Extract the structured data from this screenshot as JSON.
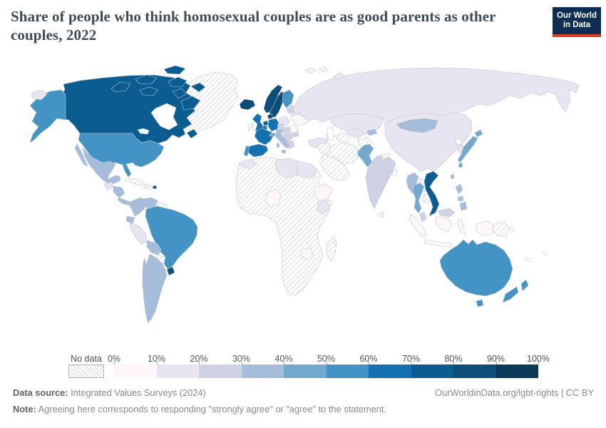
{
  "header": {
    "title": "Share of people who think homosexual couples are as good parents as other couples, 2022",
    "logo": {
      "line1": "Our World",
      "line2": "in Data",
      "bg_color": "#0d2d52",
      "accent_color": "#dc3d26"
    }
  },
  "footer": {
    "datasource_label": "Data source:",
    "datasource_value": "Integrated Values Surveys (2024)",
    "credit": "OurWorldinData.org/lgbt-rights | CC BY",
    "note_label": "Note:",
    "note_value": "Agreeing here corresponds to responding \"strongly agree\" or \"agree\" to the statement."
  },
  "chart_data": {
    "type": "choropleth",
    "title": "Share of people who think homosexual couples are as good parents as other couples",
    "year": "2022",
    "unit": "%",
    "legend": {
      "no_data_label": "No data",
      "tick_labels": [
        "0%",
        "10%",
        "20%",
        "30%",
        "40%",
        "50%",
        "60%",
        "70%",
        "80%",
        "90%",
        "100%"
      ],
      "band_colors": [
        "#fff6fa",
        "#e9e4f1",
        "#cfd1e5",
        "#a5bcdb",
        "#74a9cf",
        "#4394c4",
        "#1471b0",
        "#0b5d91",
        "#0d4d78",
        "#0b3a5a"
      ]
    },
    "countries": [
      {
        "id": "canada",
        "name": "Canada",
        "band": "70-80%"
      },
      {
        "id": "united-states",
        "name": "United States",
        "band": "50-60%"
      },
      {
        "id": "greenland",
        "name": "Greenland",
        "band": "no-data"
      },
      {
        "id": "iceland",
        "name": "Iceland",
        "band": "80-90%"
      },
      {
        "id": "mexico",
        "name": "Mexico",
        "band": "30-40%"
      },
      {
        "id": "guatemala",
        "name": "Guatemala",
        "band": "10-20%"
      },
      {
        "id": "nicaragua",
        "name": "Nicaragua",
        "band": "30-40%"
      },
      {
        "id": "panama",
        "name": "Panama",
        "band": "30-40%"
      },
      {
        "id": "cuba",
        "name": "Cuba",
        "band": "no-data"
      },
      {
        "id": "hispaniola",
        "name": "Haiti / Dominican Republic",
        "band": "no-data"
      },
      {
        "id": "puerto-rico",
        "name": "Puerto Rico",
        "band": "70-80%"
      },
      {
        "id": "colombia",
        "name": "Colombia",
        "band": "30-40%"
      },
      {
        "id": "venezuela",
        "name": "Venezuela",
        "band": "30-40%"
      },
      {
        "id": "guyana-suriname",
        "name": "Guyana / Suriname",
        "band": "no-data"
      },
      {
        "id": "ecuador",
        "name": "Ecuador",
        "band": "30-40%"
      },
      {
        "id": "peru",
        "name": "Peru",
        "band": "10-20%"
      },
      {
        "id": "brazil",
        "name": "Brazil",
        "band": "50-60%"
      },
      {
        "id": "bolivia",
        "name": "Bolivia",
        "band": "30-40%"
      },
      {
        "id": "paraguay",
        "name": "Paraguay",
        "band": "no-data"
      },
      {
        "id": "uruguay",
        "name": "Uruguay",
        "band": "80-90%"
      },
      {
        "id": "argentina",
        "name": "Argentina",
        "band": "30-40%"
      },
      {
        "id": "chile",
        "name": "Chile",
        "band": "30-40%"
      },
      {
        "id": "united-kingdom",
        "name": "United Kingdom",
        "band": "60-70%"
      },
      {
        "id": "ireland",
        "name": "Ireland",
        "band": "no-data"
      },
      {
        "id": "norway",
        "name": "Norway",
        "band": "80-90%"
      },
      {
        "id": "sweden",
        "name": "Sweden",
        "band": "80-90%"
      },
      {
        "id": "denmark",
        "name": "Denmark",
        "band": "80-90%"
      },
      {
        "id": "finland",
        "name": "Finland",
        "band": "50-60%"
      },
      {
        "id": "netherlands",
        "name": "Netherlands",
        "band": "70-80%"
      },
      {
        "id": "belgium",
        "name": "Belgium",
        "band": "60-70%"
      },
      {
        "id": "germany",
        "name": "Germany",
        "band": "60-70%"
      },
      {
        "id": "france",
        "name": "France",
        "band": "60-70%"
      },
      {
        "id": "spain",
        "name": "Spain",
        "band": "60-70%"
      },
      {
        "id": "portugal",
        "name": "Portugal",
        "band": "50-60%"
      },
      {
        "id": "switzerland",
        "name": "Switzerland",
        "band": "40-50%"
      },
      {
        "id": "italy",
        "name": "Italy",
        "band": "30-40%"
      },
      {
        "id": "austria",
        "name": "Austria",
        "band": "30-40%"
      },
      {
        "id": "czechia",
        "name": "Czechia",
        "band": "20-30%"
      },
      {
        "id": "poland",
        "name": "Poland",
        "band": "10-20%"
      },
      {
        "id": "hungary",
        "name": "Hungary / Slovakia",
        "band": "20-30%"
      },
      {
        "id": "serbia",
        "name": "Serbia / Balkans",
        "band": "20-30%"
      },
      {
        "id": "greece",
        "name": "Greece",
        "band": "20-30%"
      },
      {
        "id": "romania",
        "name": "Romania",
        "band": "0-10%"
      },
      {
        "id": "bulgaria",
        "name": "Bulgaria",
        "band": "20-30%"
      },
      {
        "id": "ukraine",
        "name": "Ukraine",
        "band": "0-10%"
      },
      {
        "id": "belarus",
        "name": "Belarus",
        "band": "10-20%"
      },
      {
        "id": "baltics",
        "name": "Baltic states",
        "band": "20-30%"
      },
      {
        "id": "russia",
        "name": "Russia",
        "band": "10-20%"
      },
      {
        "id": "turkey",
        "name": "Turkey",
        "band": "10-20%"
      },
      {
        "id": "georgia",
        "name": "Caucasus",
        "band": "10-20%"
      },
      {
        "id": "kazakhstan",
        "name": "Kazakhstan",
        "band": "10-20%"
      },
      {
        "id": "uzbekistan",
        "name": "Uzbekistan",
        "band": "10-20%"
      },
      {
        "id": "turkmenistan",
        "name": "Turkmenistan",
        "band": "no-data"
      },
      {
        "id": "kyrgyzstan",
        "name": "Kyrgyzstan",
        "band": "30-40%"
      },
      {
        "id": "iran",
        "name": "Iran",
        "band": "no-data"
      },
      {
        "id": "iraq-syria",
        "name": "Iraq / Syria",
        "band": "no-data"
      },
      {
        "id": "saudi-arabia",
        "name": "Saudi Arabia / Arabian Peninsula",
        "band": "no-data"
      },
      {
        "id": "afghanistan",
        "name": "Afghanistan",
        "band": "no-data"
      },
      {
        "id": "pakistan",
        "name": "Pakistan",
        "band": "40-50%"
      },
      {
        "id": "india",
        "name": "India",
        "band": "20-30%"
      },
      {
        "id": "nepal",
        "name": "Nepal",
        "band": "no-data"
      },
      {
        "id": "bangladesh",
        "name": "Bangladesh",
        "band": "0-10%"
      },
      {
        "id": "sri-lanka",
        "name": "Sri Lanka",
        "band": "no-data"
      },
      {
        "id": "china",
        "name": "China",
        "band": "10-20%"
      },
      {
        "id": "mongolia",
        "name": "Mongolia",
        "band": "30-40%"
      },
      {
        "id": "north-korea",
        "name": "North Korea",
        "band": "no-data"
      },
      {
        "id": "south-korea",
        "name": "South Korea",
        "band": "10-20%"
      },
      {
        "id": "japan",
        "name": "Japan",
        "band": "40-50%"
      },
      {
        "id": "taiwan",
        "name": "Taiwan",
        "band": "30-40%"
      },
      {
        "id": "myanmar",
        "name": "Myanmar",
        "band": "30-40%"
      },
      {
        "id": "thailand",
        "name": "Thailand",
        "band": "40-50%"
      },
      {
        "id": "laos",
        "name": "Laos",
        "band": "no-data"
      },
      {
        "id": "cambodia",
        "name": "Cambodia",
        "band": "no-data"
      },
      {
        "id": "vietnam",
        "name": "Vietnam",
        "band": "70-80%"
      },
      {
        "id": "malaysia",
        "name": "Malaysia",
        "band": "20-30%"
      },
      {
        "id": "indonesia",
        "name": "Indonesia",
        "band": "0-10%"
      },
      {
        "id": "philippines",
        "name": "Philippines",
        "band": "30-40%"
      },
      {
        "id": "papua-new-guinea",
        "name": "Papua New Guinea",
        "band": "no-data"
      },
      {
        "id": "timor",
        "name": "Timor-Leste",
        "band": "no-data"
      },
      {
        "id": "australia",
        "name": "Australia",
        "band": "50-60%"
      },
      {
        "id": "new-zealand",
        "name": "New Zealand",
        "band": "50-60%"
      },
      {
        "id": "morocco",
        "name": "Morocco",
        "band": "10-20%"
      },
      {
        "id": "libya",
        "name": "Libya",
        "band": "10-20%"
      },
      {
        "id": "egypt",
        "name": "Egypt",
        "band": "10-20%"
      },
      {
        "id": "nigeria",
        "name": "Nigeria",
        "band": "0-10%"
      },
      {
        "id": "ethiopia",
        "name": "Ethiopia",
        "band": "0-10%"
      },
      {
        "id": "kenya",
        "name": "Kenya",
        "band": "10-20%"
      },
      {
        "id": "zimbabwe",
        "name": "Zimbabwe",
        "band": "0-10%"
      },
      {
        "id": "madagascar",
        "name": "Madagascar",
        "band": "no-data"
      },
      {
        "id": "africa-base",
        "name": "Africa (most countries)",
        "band": "no-data"
      },
      {
        "id": "svalbard",
        "name": "Svalbard",
        "band": "no-data"
      }
    ]
  }
}
